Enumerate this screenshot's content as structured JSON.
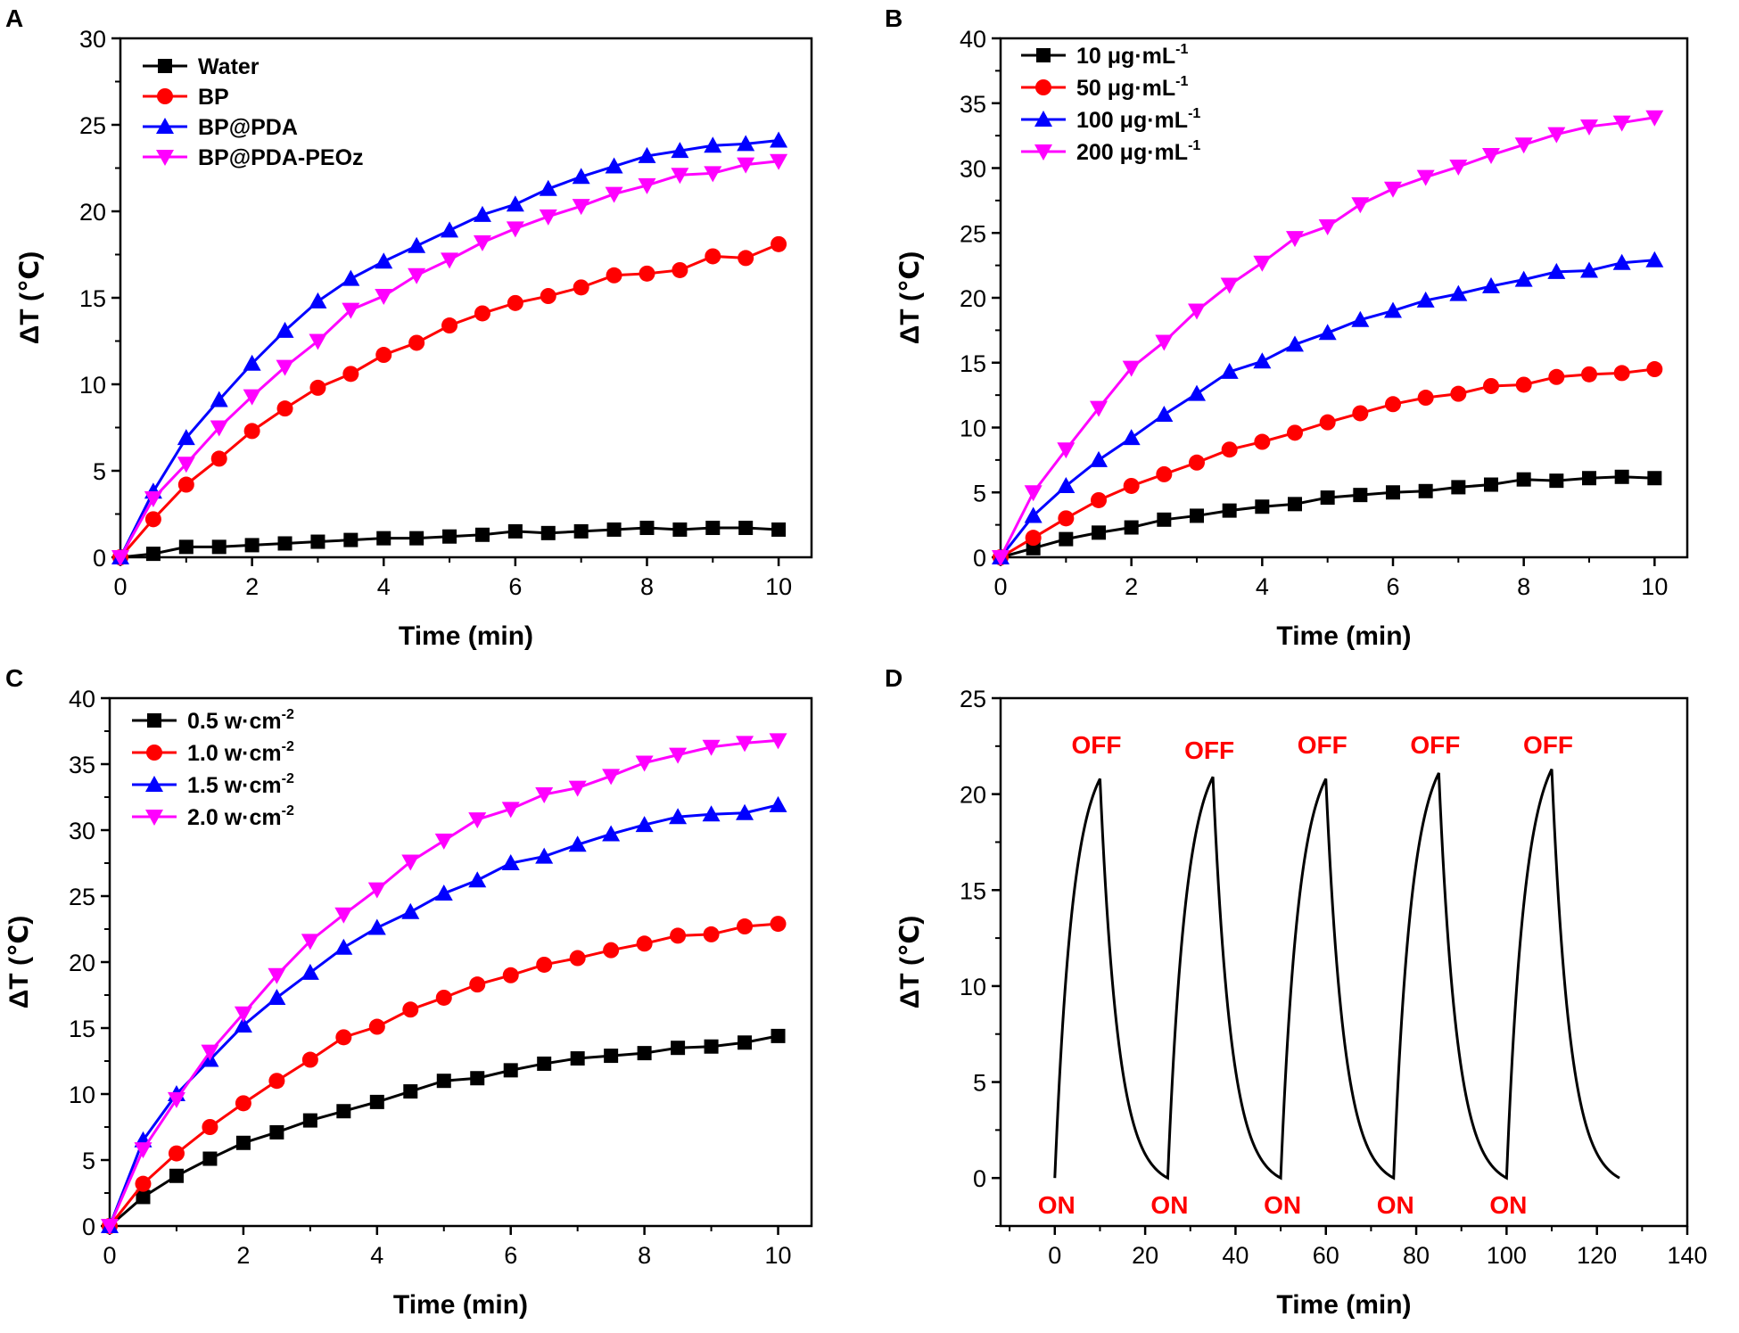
{
  "figure": {
    "panel_labels": [
      "A",
      "B",
      "C",
      "D"
    ]
  },
  "chart_data": [
    {
      "panel": "A",
      "type": "line",
      "xlabel": "Time (min)",
      "ylabel": "ΔT (℃)",
      "xlim": [
        0,
        10.5
      ],
      "ylim": [
        0,
        30
      ],
      "xticks": [
        0,
        2,
        4,
        6,
        8,
        10
      ],
      "yticks": [
        0,
        5,
        10,
        15,
        20,
        25,
        30
      ],
      "legend_position": "top-left",
      "x": [
        0,
        0.5,
        1,
        1.5,
        2,
        2.5,
        3,
        3.5,
        4,
        4.5,
        5,
        5.5,
        6,
        6.5,
        7,
        7.5,
        8,
        8.5,
        9,
        9.5,
        10
      ],
      "series": [
        {
          "name": "Water",
          "label_main": "Water",
          "marker": "square",
          "color": "#000000",
          "values": [
            0,
            0.2,
            0.6,
            0.6,
            0.7,
            0.8,
            0.9,
            1.0,
            1.1,
            1.1,
            1.2,
            1.3,
            1.5,
            1.4,
            1.5,
            1.6,
            1.7,
            1.6,
            1.7,
            1.7,
            1.6
          ]
        },
        {
          "name": "BP",
          "label_main": "BP",
          "marker": "circle",
          "color": "#ff0000",
          "values": [
            0,
            2.2,
            4.2,
            5.7,
            7.3,
            8.6,
            9.8,
            10.6,
            11.7,
            12.4,
            13.4,
            14.1,
            14.7,
            15.1,
            15.6,
            16.3,
            16.4,
            16.6,
            17.4,
            17.3,
            18.1
          ]
        },
        {
          "name": "BP@PDA",
          "label_main": "BP@PDA",
          "marker": "triangle-up",
          "color": "#0000ff",
          "values": [
            0,
            3.8,
            6.9,
            9.1,
            11.2,
            13.1,
            14.8,
            16.1,
            17.1,
            18.0,
            18.9,
            19.8,
            20.4,
            21.3,
            22.0,
            22.6,
            23.2,
            23.5,
            23.8,
            23.9,
            24.1
          ]
        },
        {
          "name": "BP@PDA-PEOz",
          "label_main": "BP@PDA-PEOz",
          "marker": "triangle-down",
          "color": "#ff00ff",
          "values": [
            0,
            3.4,
            5.4,
            7.5,
            9.3,
            11.0,
            12.5,
            14.3,
            15.1,
            16.3,
            17.2,
            18.2,
            19.0,
            19.7,
            20.3,
            21.0,
            21.5,
            22.1,
            22.2,
            22.7,
            22.9
          ]
        }
      ]
    },
    {
      "panel": "B",
      "type": "line",
      "xlabel": "Time (min)",
      "ylabel": "ΔT (℃)",
      "xlim": [
        0,
        10.5
      ],
      "ylim": [
        0,
        40
      ],
      "xticks": [
        0,
        2,
        4,
        6,
        8,
        10
      ],
      "yticks": [
        0,
        5,
        10,
        15,
        20,
        25,
        30,
        35,
        40
      ],
      "legend_position": "top-left",
      "x": [
        0,
        0.5,
        1,
        1.5,
        2,
        2.5,
        3,
        3.5,
        4,
        4.5,
        5,
        5.5,
        6,
        6.5,
        7,
        7.5,
        8,
        8.5,
        9,
        9.5,
        10
      ],
      "series": [
        {
          "name": "10 μg·mL-1",
          "label_main": "10 μg·mL",
          "label_sup": "-1",
          "marker": "square",
          "color": "#000000",
          "values": [
            0,
            0.7,
            1.4,
            1.9,
            2.3,
            2.9,
            3.2,
            3.6,
            3.9,
            4.1,
            4.6,
            4.8,
            5.0,
            5.1,
            5.4,
            5.6,
            6.0,
            5.9,
            6.1,
            6.2,
            6.1
          ]
        },
        {
          "name": "50 μg·mL-1",
          "label_main": "50 μg·mL",
          "label_sup": "-1",
          "marker": "circle",
          "color": "#ff0000",
          "values": [
            0,
            1.5,
            3.0,
            4.4,
            5.5,
            6.4,
            7.3,
            8.3,
            8.9,
            9.6,
            10.4,
            11.1,
            11.8,
            12.3,
            12.6,
            13.2,
            13.3,
            13.9,
            14.1,
            14.2,
            14.5
          ]
        },
        {
          "name": "100 μg·mL-1",
          "label_main": "100 μg·mL",
          "label_sup": "-1",
          "marker": "triangle-up",
          "color": "#0000ff",
          "values": [
            0,
            3.2,
            5.5,
            7.5,
            9.2,
            11.0,
            12.6,
            14.3,
            15.1,
            16.4,
            17.3,
            18.3,
            19.0,
            19.8,
            20.3,
            20.9,
            21.4,
            22.0,
            22.1,
            22.7,
            22.9
          ]
        },
        {
          "name": "200 μg·mL-1",
          "label_main": "200 μg·mL",
          "label_sup": "-1",
          "marker": "triangle-down",
          "color": "#ff00ff",
          "values": [
            0,
            5.0,
            8.3,
            11.5,
            14.6,
            16.6,
            19.0,
            21.0,
            22.7,
            24.6,
            25.5,
            27.2,
            28.4,
            29.3,
            30.1,
            31.0,
            31.8,
            32.6,
            33.2,
            33.5,
            33.9
          ]
        }
      ]
    },
    {
      "panel": "C",
      "type": "line",
      "xlabel": "Time (min)",
      "ylabel": "ΔT (℃)",
      "xlim": [
        0,
        10.5
      ],
      "ylim": [
        0,
        40
      ],
      "xticks": [
        0,
        2,
        4,
        6,
        8,
        10
      ],
      "yticks": [
        0,
        5,
        10,
        15,
        20,
        25,
        30,
        35,
        40
      ],
      "legend_position": "top-left",
      "x": [
        0,
        0.5,
        1,
        1.5,
        2,
        2.5,
        3,
        3.5,
        4,
        4.5,
        5,
        5.5,
        6,
        6.5,
        7,
        7.5,
        8,
        8.5,
        9,
        9.5,
        10
      ],
      "series": [
        {
          "name": "0.5 w·cm-2",
          "label_main": "0.5 w·cm",
          "label_sup": "-2",
          "marker": "square",
          "color": "#000000",
          "values": [
            0,
            2.2,
            3.8,
            5.1,
            6.3,
            7.1,
            8.0,
            8.7,
            9.4,
            10.2,
            11.0,
            11.2,
            11.8,
            12.3,
            12.7,
            12.9,
            13.1,
            13.5,
            13.6,
            13.9,
            14.4
          ]
        },
        {
          "name": "1.0 w·cm-2",
          "label_main": "1.0 w·cm",
          "label_sup": "-2",
          "marker": "circle",
          "color": "#ff0000",
          "values": [
            0,
            3.2,
            5.5,
            7.5,
            9.3,
            11.0,
            12.6,
            14.3,
            15.1,
            16.4,
            17.3,
            18.3,
            19.0,
            19.8,
            20.3,
            20.9,
            21.4,
            22.0,
            22.1,
            22.7,
            22.9
          ]
        },
        {
          "name": "1.5 w·cm-2",
          "label_main": "1.5 w·cm",
          "label_sup": "-2",
          "marker": "triangle-up",
          "color": "#0000ff",
          "values": [
            0,
            6.5,
            10.0,
            12.6,
            15.2,
            17.3,
            19.2,
            21.1,
            22.6,
            23.8,
            25.2,
            26.2,
            27.5,
            28.0,
            28.9,
            29.7,
            30.4,
            31.0,
            31.2,
            31.3,
            31.9
          ]
        },
        {
          "name": "2.0 w·cm-2",
          "label_main": "2.0 w·cm",
          "label_sup": "-2",
          "marker": "triangle-down",
          "color": "#ff00ff",
          "values": [
            0,
            5.8,
            9.6,
            13.2,
            16.1,
            19.0,
            21.6,
            23.6,
            25.5,
            27.6,
            29.2,
            30.8,
            31.6,
            32.7,
            33.2,
            34.1,
            35.1,
            35.7,
            36.3,
            36.6,
            36.8
          ]
        }
      ]
    },
    {
      "panel": "D",
      "type": "line",
      "xlabel": "Time (min)",
      "ylabel": "ΔT (℃)",
      "xlim": [
        -12,
        140
      ],
      "ylim": [
        -2.5,
        25
      ],
      "xticks": [
        0,
        20,
        40,
        60,
        80,
        100,
        120,
        140
      ],
      "yticks": [
        0,
        5,
        10,
        15,
        20,
        25
      ],
      "legend_position": "none",
      "cycles": [
        {
          "on_time": 0,
          "off_time": 10,
          "peak": 20.8,
          "end_time": 25
        },
        {
          "on_time": 25,
          "off_time": 35,
          "peak": 20.9,
          "end_time": 50
        },
        {
          "on_time": 50,
          "off_time": 60,
          "peak": 20.8,
          "end_time": 75
        },
        {
          "on_time": 75,
          "off_time": 85,
          "peak": 21.1,
          "end_time": 100
        },
        {
          "on_time": 100,
          "off_time": 110,
          "peak": 21.3,
          "end_time": 125
        }
      ],
      "annotations": {
        "on_label": "ON",
        "off_label": "OFF",
        "on_x": [
          0,
          25,
          50,
          75,
          100
        ],
        "off_x": [
          10,
          35,
          60,
          85,
          110
        ]
      }
    }
  ]
}
